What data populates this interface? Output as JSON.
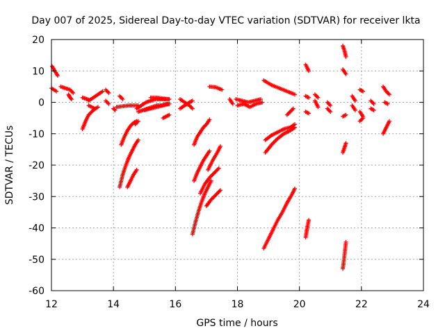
{
  "chart_data": {
    "type": "scatter",
    "title": "Day 007 of 2025, Sidereal Day-to-day VTEC variation (SDTVAR) for receiver lkta",
    "xlabel": "GPS time / hours",
    "ylabel": "SDTVAR / TECUs",
    "xlim": [
      12,
      24
    ],
    "ylim": [
      -60,
      20
    ],
    "xticks": [
      12,
      14,
      16,
      18,
      20,
      22,
      24
    ],
    "yticks": [
      -60,
      -50,
      -40,
      -30,
      -20,
      -10,
      0,
      10,
      20
    ],
    "xtick_labels": [
      "12",
      "14",
      "16",
      "18",
      "20",
      "22",
      "24"
    ],
    "ytick_labels": [
      "-60",
      "-50",
      "-40",
      "-30",
      "-20",
      "-10",
      "0",
      "10",
      "20"
    ],
    "grid": true,
    "marker": "plus",
    "color": "#ff0000",
    "segments": [
      {
        "x": [
          12.02,
          12.08,
          12.14,
          12.2
        ],
        "y": [
          11.5,
          10.5,
          9.5,
          8.5
        ]
      },
      {
        "x": [
          12.0,
          12.08,
          12.16
        ],
        "y": [
          4.5,
          4.0,
          3.5
        ]
      },
      {
        "x": [
          12.3,
          12.45,
          12.6,
          12.7
        ],
        "y": [
          5.0,
          4.5,
          4.0,
          3.0
        ]
      },
      {
        "x": [
          12.55,
          12.6,
          12.65
        ],
        "y": [
          2.5,
          1.5,
          1.0
        ]
      },
      {
        "x": [
          13.0,
          13.1,
          13.2
        ],
        "y": [
          1.5,
          1.2,
          0.8
        ]
      },
      {
        "x": [
          13.2,
          13.35,
          13.5,
          13.65
        ],
        "y": [
          0.5,
          1.5,
          2.5,
          3.5
        ]
      },
      {
        "x": [
          13.2,
          13.4
        ],
        "y": [
          -1.0,
          -2.0
        ]
      },
      {
        "x": [
          13.0,
          13.1,
          13.2,
          13.35,
          13.5
        ],
        "y": [
          -8.5,
          -6.0,
          -4.0,
          -2.5,
          -1.5
        ]
      },
      {
        "x": [
          13.75,
          13.85
        ],
        "y": [
          4.0,
          3.0
        ]
      },
      {
        "x": [
          13.75,
          13.85
        ],
        "y": [
          0.5,
          -0.5
        ]
      },
      {
        "x": [
          14.2,
          14.3
        ],
        "y": [
          2.0,
          1.0
        ]
      },
      {
        "x": [
          14.1,
          14.5,
          14.8
        ],
        "y": [
          -1.5,
          -1.0,
          -1.0
        ]
      },
      {
        "x": [
          14.0,
          14.05
        ],
        "y": [
          -2.0,
          -2.5
        ]
      },
      {
        "x": [
          14.25,
          14.35,
          14.45,
          14.55,
          14.65,
          14.75
        ],
        "y": [
          -13.5,
          -11.0,
          -9.0,
          -7.5,
          -6.5,
          -6.0
        ]
      },
      {
        "x": [
          14.2,
          14.3,
          14.4,
          14.5,
          14.6,
          14.7,
          14.8
        ],
        "y": [
          -27.0,
          -23.0,
          -20.0,
          -17.5,
          -15.5,
          -13.5,
          -12.0
        ]
      },
      {
        "x": [
          14.45,
          14.55,
          14.65,
          14.75
        ],
        "y": [
          -27.0,
          -25.0,
          -23.0,
          -21.5
        ]
      },
      {
        "x": [
          14.7,
          14.8
        ],
        "y": [
          -7.0,
          -6.0
        ]
      },
      {
        "x": [
          14.75,
          14.9,
          15.05,
          15.2,
          15.35,
          15.5,
          15.65,
          15.8
        ],
        "y": [
          -2.0,
          -1.0,
          0.0,
          0.5,
          1.0,
          1.0,
          1.0,
          1.0
        ]
      },
      {
        "x": [
          14.8,
          14.95,
          15.1,
          15.25,
          15.4,
          15.55,
          15.7,
          15.8
        ],
        "y": [
          -3.0,
          -2.5,
          -2.0,
          -1.5,
          -1.0,
          -1.0,
          -0.5,
          -0.5
        ]
      },
      {
        "x": [
          15.0,
          15.2,
          15.4,
          15.6,
          15.8
        ],
        "y": [
          -2.5,
          -2.0,
          -1.5,
          -1.0,
          -0.5
        ]
      },
      {
        "x": [
          15.2,
          15.4,
          15.6,
          15.8
        ],
        "y": [
          1.5,
          1.5,
          1.2,
          1.0
        ]
      },
      {
        "x": [
          15.6,
          15.7,
          15.8
        ],
        "y": [
          -5.0,
          -4.5,
          -4.0
        ]
      },
      {
        "x": [
          16.15,
          16.3,
          16.45,
          16.55
        ],
        "y": [
          1.0,
          0.0,
          -1.0,
          -2.0
        ]
      },
      {
        "x": [
          16.15,
          16.3,
          16.45,
          16.55
        ],
        "y": [
          -2.0,
          -1.0,
          0.0,
          0.5
        ]
      },
      {
        "x": [
          16.6,
          16.7,
          16.8,
          16.9,
          17.0,
          17.1
        ],
        "y": [
          -13.5,
          -11.0,
          -9.5,
          -8.0,
          -7.0,
          -5.5
        ]
      },
      {
        "x": [
          16.6,
          16.7,
          16.8,
          16.9,
          17.0,
          17.1
        ],
        "y": [
          -25.0,
          -22.5,
          -20.5,
          -18.5,
          -17.0,
          -15.5
        ]
      },
      {
        "x": [
          16.55,
          16.65,
          16.75,
          16.85,
          16.95,
          17.05,
          17.15
        ],
        "y": [
          -42.0,
          -38.0,
          -34.5,
          -31.5,
          -29.0,
          -27.0,
          -25.0
        ]
      },
      {
        "x": [
          16.8,
          16.95,
          17.1,
          17.25,
          17.4
        ],
        "y": [
          -29.0,
          -26.0,
          -24.0,
          -22.5,
          -21.0
        ]
      },
      {
        "x": [
          17.0,
          17.15,
          17.3,
          17.45
        ],
        "y": [
          -33.0,
          -31.0,
          -29.5,
          -28.0
        ]
      },
      {
        "x": [
          17.05,
          17.2,
          17.35,
          17.45
        ],
        "y": [
          -21.5,
          -18.5,
          -16.0,
          -14.0
        ]
      },
      {
        "x": [
          17.1,
          17.3,
          17.5
        ],
        "y": [
          5.0,
          4.8,
          4.0
        ]
      },
      {
        "x": [
          17.75,
          17.85
        ],
        "y": [
          1.0,
          -0.5
        ]
      },
      {
        "x": [
          17.95,
          18.15,
          18.35,
          18.55,
          18.75
        ],
        "y": [
          1.0,
          0.5,
          0.0,
          0.5,
          1.0
        ]
      },
      {
        "x": [
          18.0,
          18.2,
          18.4,
          18.6,
          18.8
        ],
        "y": [
          -1.0,
          -0.5,
          -1.5,
          -0.5,
          0.0
        ]
      },
      {
        "x": [
          18.85,
          19.1,
          19.35,
          19.6,
          19.85
        ],
        "y": [
          7.0,
          5.5,
          4.5,
          3.5,
          2.5
        ]
      },
      {
        "x": [
          19.6,
          19.7,
          19.8
        ],
        "y": [
          -4.0,
          -3.0,
          -2.0
        ]
      },
      {
        "x": [
          18.9,
          19.1,
          19.3,
          19.5,
          19.7,
          19.85
        ],
        "y": [
          -12.0,
          -10.5,
          -9.5,
          -8.5,
          -8.0,
          -7.0
        ]
      },
      {
        "x": [
          18.9,
          19.1,
          19.3,
          19.5,
          19.7,
          19.85
        ],
        "y": [
          -16.0,
          -13.5,
          -11.5,
          -10.0,
          -9.0,
          -8.0
        ]
      },
      {
        "x": [
          18.85,
          19.0,
          19.15,
          19.3,
          19.45,
          19.6,
          19.75,
          19.85
        ],
        "y": [
          -46.5,
          -43.5,
          -40.5,
          -37.5,
          -35.0,
          -32.0,
          -29.5,
          -27.5
        ]
      },
      {
        "x": [
          20.2,
          20.3
        ],
        "y": [
          12.0,
          10.0
        ]
      },
      {
        "x": [
          20.2,
          20.3
        ],
        "y": [
          2.0,
          1.5
        ]
      },
      {
        "x": [
          20.2,
          20.3
        ],
        "y": [
          -3.0,
          -3.5
        ]
      },
      {
        "x": [
          20.2,
          20.25,
          20.3
        ],
        "y": [
          -43.0,
          -40.0,
          -37.5
        ]
      },
      {
        "x": [
          20.5,
          20.6
        ],
        "y": [
          2.5,
          1.5
        ]
      },
      {
        "x": [
          20.5,
          20.6
        ],
        "y": [
          0.5,
          -1.5
        ]
      },
      {
        "x": [
          20.9,
          21.0
        ],
        "y": [
          0.0,
          -1.0
        ]
      },
      {
        "x": [
          20.9,
          21.0
        ],
        "y": [
          -2.0,
          -3.0
        ]
      },
      {
        "x": [
          21.4,
          21.45,
          21.5
        ],
        "y": [
          18.0,
          16.5,
          14.5
        ]
      },
      {
        "x": [
          21.4,
          21.5
        ],
        "y": [
          10.5,
          9.0
        ]
      },
      {
        "x": [
          21.4,
          21.5
        ],
        "y": [
          -4.5,
          -4.0
        ]
      },
      {
        "x": [
          21.4,
          21.45,
          21.5
        ],
        "y": [
          -16.0,
          -14.5,
          -13.0
        ]
      },
      {
        "x": [
          21.4,
          21.45,
          21.5
        ],
        "y": [
          -53.0,
          -49.0,
          -44.5
        ]
      },
      {
        "x": [
          21.7,
          21.8
        ],
        "y": [
          2.0,
          0.5
        ]
      },
      {
        "x": [
          21.7,
          21.8
        ],
        "y": [
          -1.0,
          -2.5
        ]
      },
      {
        "x": [
          21.95,
          22.05
        ],
        "y": [
          4.0,
          3.5
        ]
      },
      {
        "x": [
          21.95,
          22.05
        ],
        "y": [
          -3.0,
          -4.5
        ]
      },
      {
        "x": [
          21.95,
          22.05
        ],
        "y": [
          -6.0,
          -5.0
        ]
      },
      {
        "x": [
          22.3,
          22.4
        ],
        "y": [
          0.5,
          -0.5
        ]
      },
      {
        "x": [
          22.3,
          22.4
        ],
        "y": [
          -2.0,
          -2.5
        ]
      },
      {
        "x": [
          22.7,
          22.8,
          22.9
        ],
        "y": [
          5.0,
          3.5,
          2.5
        ]
      },
      {
        "x": [
          22.7,
          22.8,
          22.9
        ],
        "y": [
          -10.0,
          -8.0,
          -6.0
        ]
      },
      {
        "x": [
          22.75,
          22.85
        ],
        "y": [
          0.0,
          -0.5
        ]
      }
    ]
  }
}
